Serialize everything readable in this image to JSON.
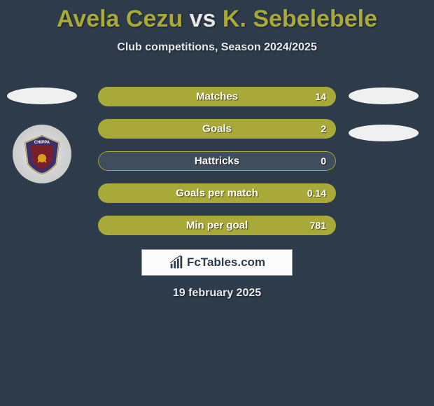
{
  "title": {
    "player1": "Avela Cezu",
    "vs": "vs",
    "player2": "K. Sebelebele"
  },
  "subtitle": "Club competitions, Season 2024/2025",
  "colors": {
    "player1": "#a9a93a",
    "player2": "#a9a93a",
    "inactive": "#3f4d5c",
    "background": "#2d3b4b",
    "bar_border": "#ffffff"
  },
  "stats": [
    {
      "label": "Matches",
      "value_display": "14",
      "p1": 0,
      "p2": 100
    },
    {
      "label": "Goals",
      "value_display": "2",
      "p1": 0,
      "p2": 100
    },
    {
      "label": "Hattricks",
      "value_display": "0",
      "p1": 0,
      "p2": 0
    },
    {
      "label": "Goals per match",
      "value_display": "0.14",
      "p1": 0,
      "p2": 100
    },
    {
      "label": "Min per goal",
      "value_display": "781",
      "p1": 0,
      "p2": 100
    }
  ],
  "brand": "FcTables.com",
  "date": "19 february 2025"
}
